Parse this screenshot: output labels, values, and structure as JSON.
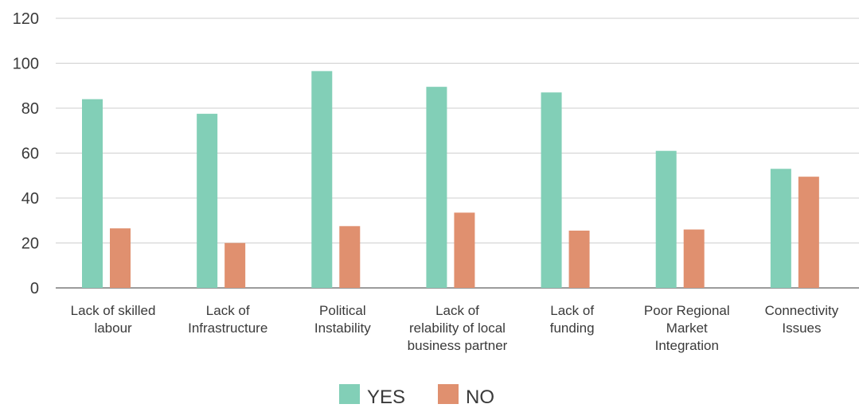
{
  "chart_data": {
    "type": "bar",
    "title": "",
    "xlabel": "",
    "ylabel": "",
    "ylim": [
      0,
      120
    ],
    "yticks": [
      0,
      20,
      40,
      60,
      80,
      100,
      120
    ],
    "grid": true,
    "legend_position": "bottom",
    "categories": [
      [
        "Lack of skilled",
        "labour"
      ],
      [
        "Lack of",
        "Infrastructure"
      ],
      [
        "Political",
        "Instability"
      ],
      [
        "Lack of",
        "relability of local",
        "business partner"
      ],
      [
        "Lack of",
        "funding"
      ],
      [
        "Poor Regional",
        "Market",
        "Integration"
      ],
      [
        "Connectivity",
        "Issues"
      ]
    ],
    "series": [
      {
        "name": "YES",
        "color": "#82cfb7",
        "values": [
          84,
          77.5,
          96.5,
          89.5,
          87,
          61,
          53
        ]
      },
      {
        "name": "NO",
        "color": "#e0906f",
        "values": [
          26.5,
          20,
          27.5,
          33.5,
          25.5,
          26,
          49.5
        ]
      }
    ]
  }
}
